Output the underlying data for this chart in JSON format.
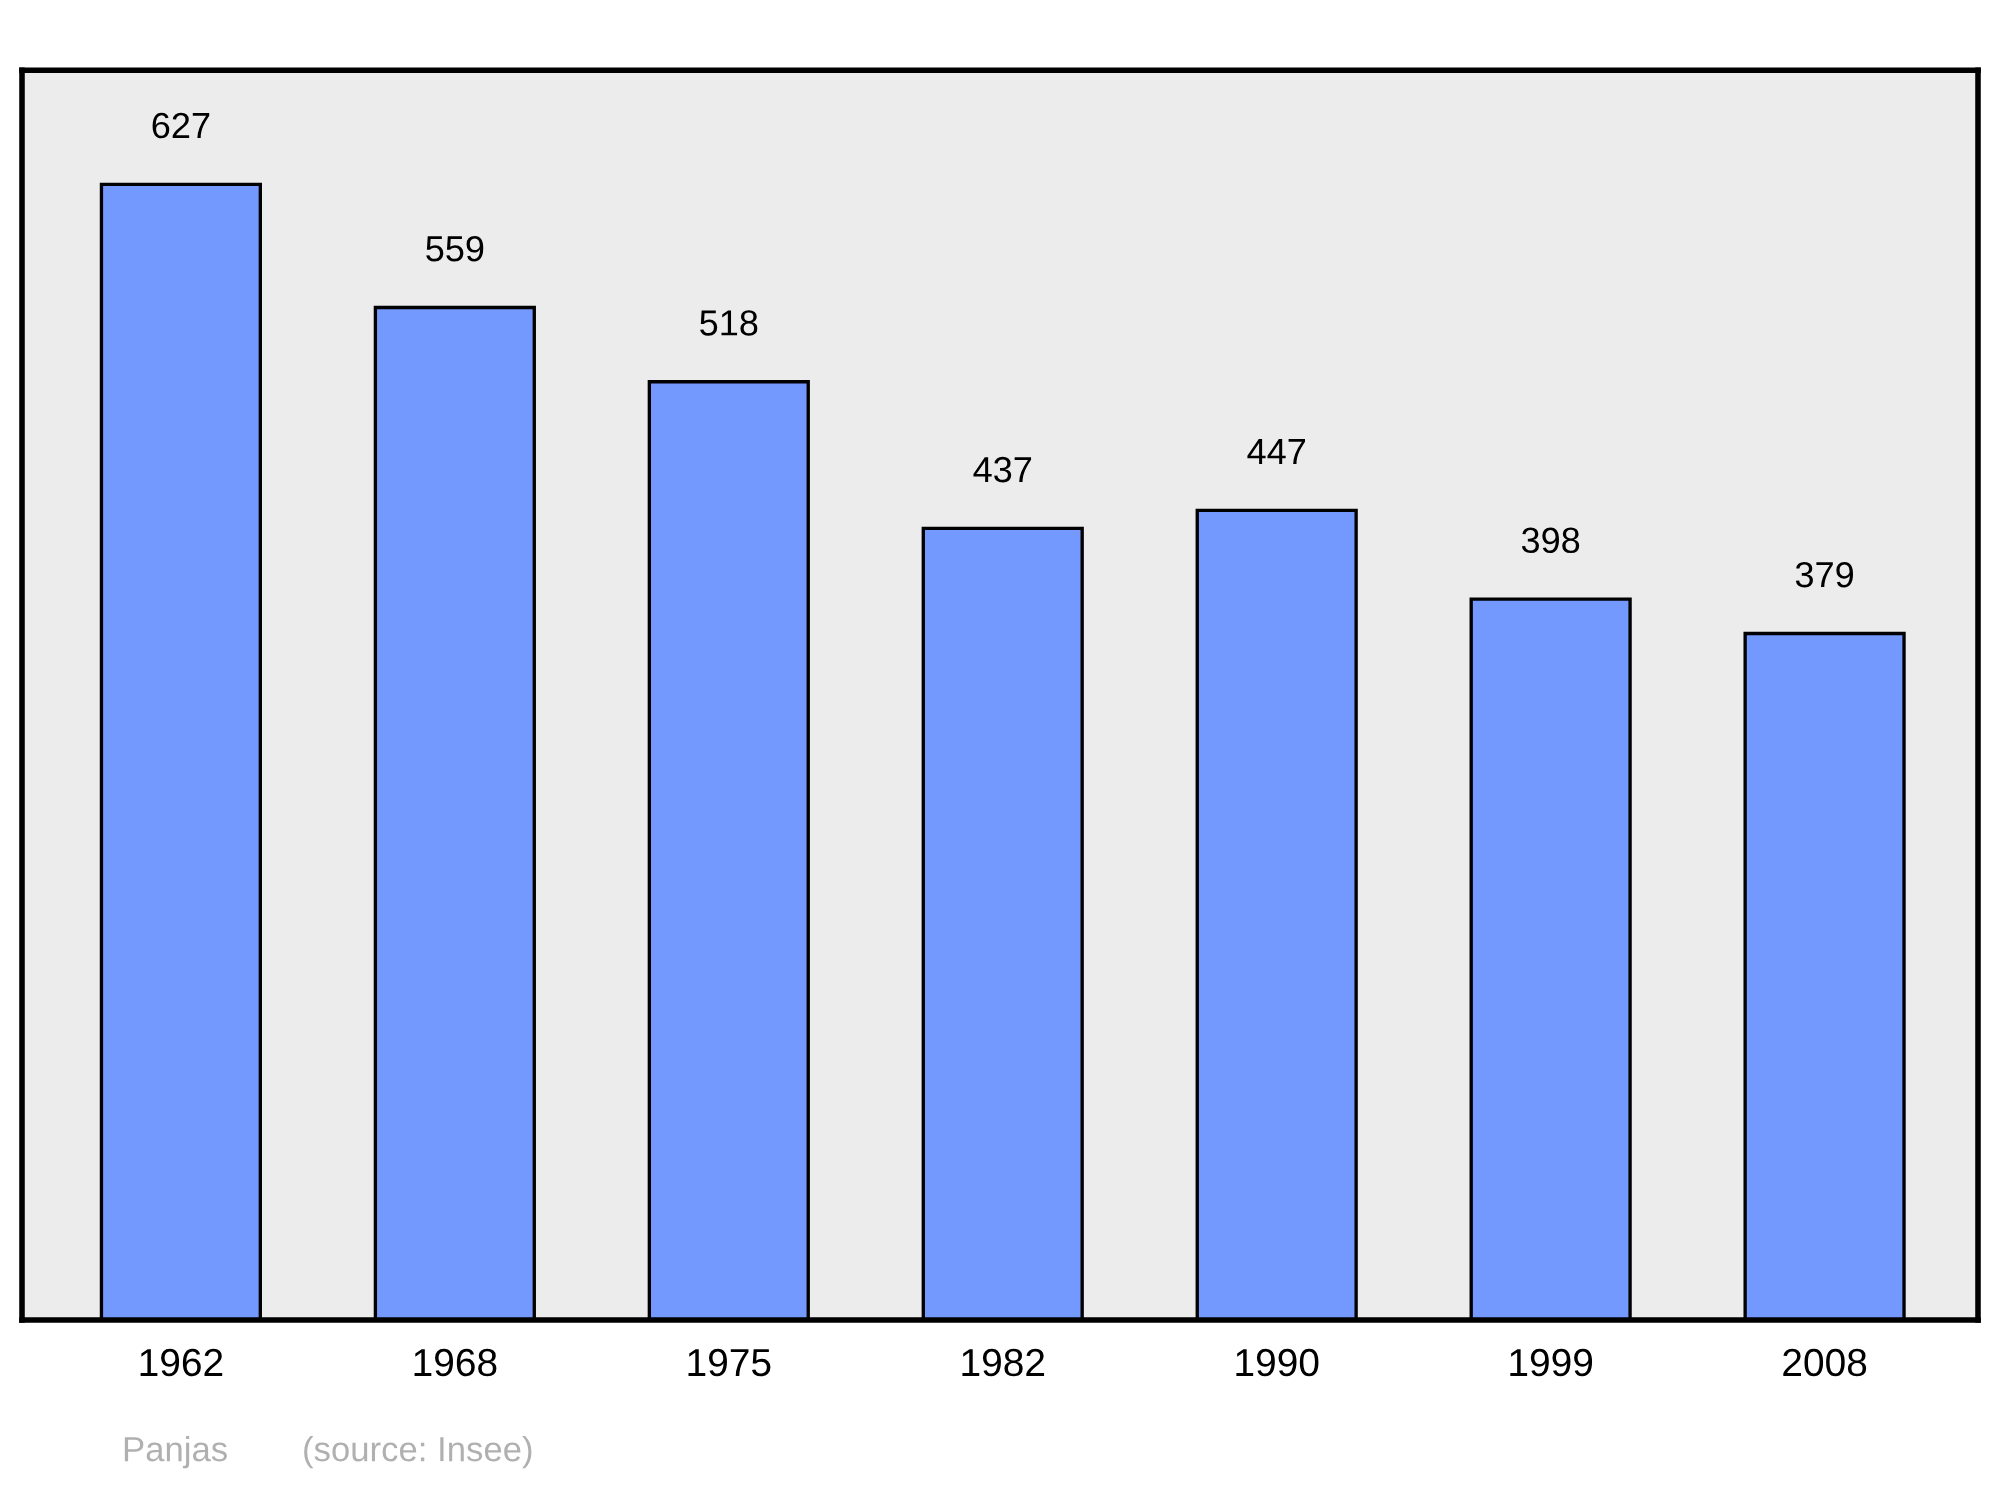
{
  "chart_data": {
    "type": "bar",
    "categories": [
      "1962",
      "1968",
      "1975",
      "1982",
      "1990",
      "1999",
      "2008"
    ],
    "values": [
      627,
      559,
      518,
      437,
      447,
      398,
      379
    ],
    "color": "#7399ff",
    "ylim": [
      0,
      690
    ],
    "data_labels": true,
    "tick_labels": "x",
    "grid": false,
    "legend": false,
    "annotations": [
      "Panjas",
      "(source: Insee)"
    ]
  }
}
